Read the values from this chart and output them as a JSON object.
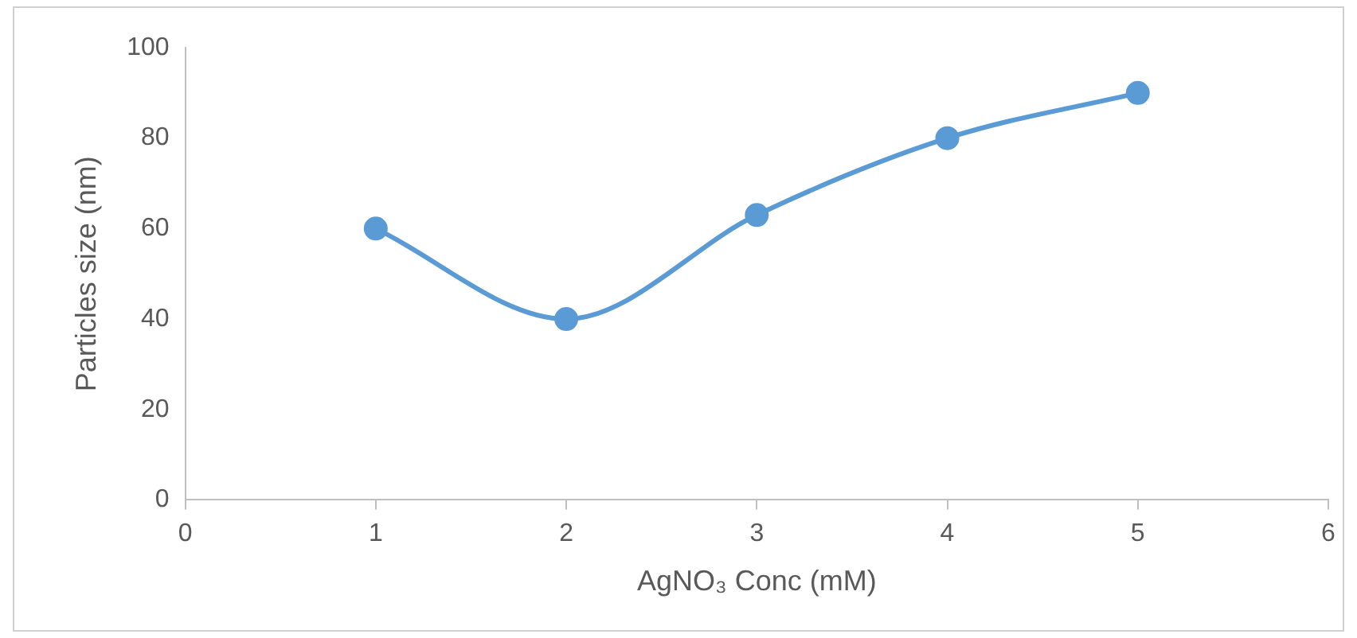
{
  "chart_data": {
    "type": "line",
    "xlabel": "AgNO₃ Conc (mM)",
    "ylabel": "Particles size (nm)",
    "x": [
      1,
      2,
      3,
      4,
      5
    ],
    "series": [
      {
        "color": "#5b9bd5",
        "values": [
          60,
          40,
          63,
          80,
          90
        ]
      }
    ],
    "xlim": [
      0,
      6
    ],
    "xticks": [
      0,
      1,
      2,
      3,
      4,
      5,
      6
    ],
    "ylim": [
      0,
      100
    ],
    "yticks": [
      0,
      20,
      40,
      60,
      80,
      100
    ],
    "grid": false,
    "legend": false,
    "marker": "circle",
    "line_style": "solid"
  }
}
